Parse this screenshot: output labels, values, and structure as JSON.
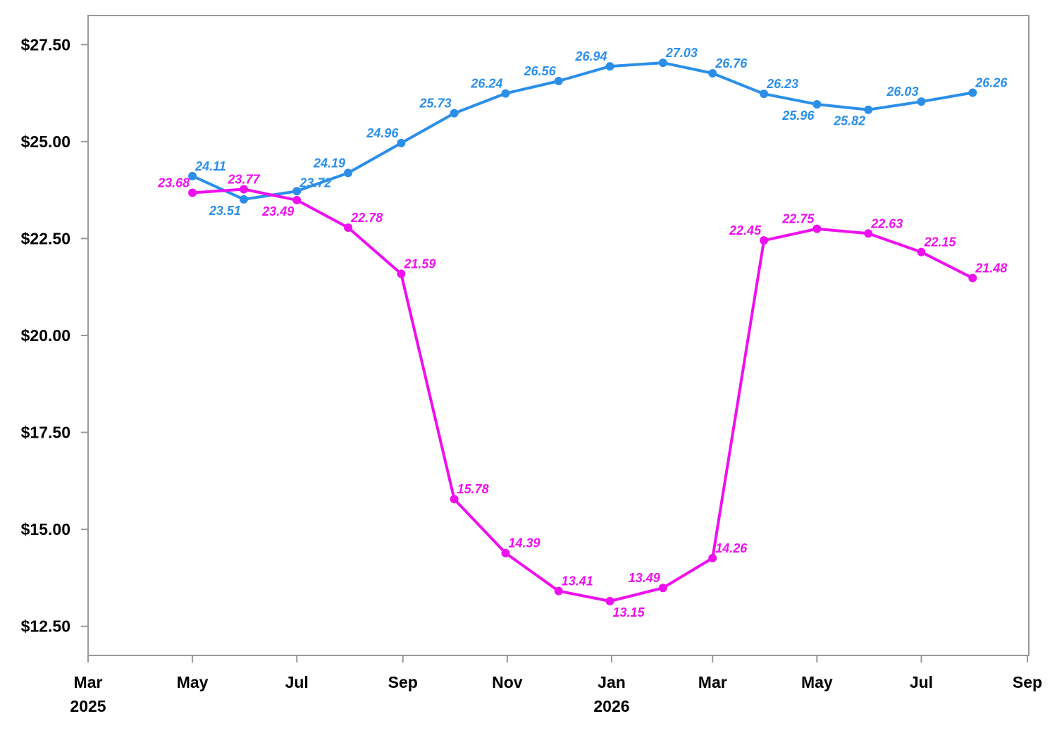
{
  "chart_data": {
    "type": "line",
    "x_axis": {
      "type": "date",
      "range": [
        "2025-03-01",
        "2026-09-01"
      ],
      "ticks": [
        {
          "date": "2025-03-01",
          "label": "Mar"
        },
        {
          "date": "2025-05-01",
          "label": "May"
        },
        {
          "date": "2025-07-01",
          "label": "Jul"
        },
        {
          "date": "2025-09-01",
          "label": "Sep"
        },
        {
          "date": "2025-11-01",
          "label": "Nov"
        },
        {
          "date": "2026-01-01",
          "label": "Jan"
        },
        {
          "date": "2026-03-01",
          "label": "Mar"
        },
        {
          "date": "2026-05-01",
          "label": "May"
        },
        {
          "date": "2026-07-01",
          "label": "Jul"
        },
        {
          "date": "2026-09-01",
          "label": "Sep"
        }
      ],
      "year_labels": [
        {
          "date": "2025-03-01",
          "label": "2025"
        },
        {
          "date": "2026-01-01",
          "label": "2026"
        }
      ]
    },
    "y_axis": {
      "range": [
        11.75,
        28.25
      ],
      "ticks": [
        12.5,
        15,
        17.5,
        20,
        22.5,
        25,
        27.5
      ],
      "tick_labels": [
        "$12.50",
        "$15.00",
        "$17.50",
        "$20.00",
        "$22.50",
        "$25.00",
        "$27.50"
      ]
    },
    "grid": false,
    "legend": "none",
    "series": [
      {
        "color": "#2b8fe8",
        "points": [
          {
            "x": "2025-05-01",
            "y": 24.11,
            "label": "24.11",
            "pos": "above-right"
          },
          {
            "x": "2025-05-31",
            "y": 23.51,
            "label": "23.51",
            "pos": "below-left"
          },
          {
            "x": "2025-07-01",
            "y": 23.72,
            "label": "23.72",
            "pos": "right"
          },
          {
            "x": "2025-07-31",
            "y": 24.19,
            "label": "24.19",
            "pos": "above-left"
          },
          {
            "x": "2025-08-31",
            "y": 24.96,
            "label": "24.96",
            "pos": "above-left"
          },
          {
            "x": "2025-10-01",
            "y": 25.73,
            "label": "25.73",
            "pos": "above-left"
          },
          {
            "x": "2025-10-31",
            "y": 26.24,
            "label": "26.24",
            "pos": "above-left"
          },
          {
            "x": "2025-12-01",
            "y": 26.56,
            "label": "26.56",
            "pos": "above-left"
          },
          {
            "x": "2025-12-31",
            "y": 26.94,
            "label": "26.94",
            "pos": "above-left"
          },
          {
            "x": "2026-01-31",
            "y": 27.03,
            "label": "27.03",
            "pos": "above-right"
          },
          {
            "x": "2026-03-01",
            "y": 26.76,
            "label": "26.76",
            "pos": "above-right"
          },
          {
            "x": "2026-03-31",
            "y": 26.23,
            "label": "26.23",
            "pos": "above-right"
          },
          {
            "x": "2026-05-01",
            "y": 25.96,
            "label": "25.96",
            "pos": "below-left"
          },
          {
            "x": "2026-05-31",
            "y": 25.82,
            "label": "25.82",
            "pos": "below-left"
          },
          {
            "x": "2026-07-01",
            "y": 26.03,
            "label": "26.03",
            "pos": "above-left"
          },
          {
            "x": "2026-07-31",
            "y": 26.26,
            "label": "26.26",
            "pos": "above-right"
          }
        ]
      },
      {
        "color": "#ee10ee",
        "points": [
          {
            "x": "2025-05-01",
            "y": 23.68,
            "label": "23.68",
            "pos": "above-left"
          },
          {
            "x": "2025-05-31",
            "y": 23.77,
            "label": "23.77",
            "pos": "above-center"
          },
          {
            "x": "2025-07-01",
            "y": 23.49,
            "label": "23.49",
            "pos": "below-left"
          },
          {
            "x": "2025-07-31",
            "y": 22.78,
            "label": "22.78",
            "pos": "above-right"
          },
          {
            "x": "2025-08-31",
            "y": 21.59,
            "label": "21.59",
            "pos": "above-right"
          },
          {
            "x": "2025-10-01",
            "y": 15.78,
            "label": "15.78",
            "pos": "above-right"
          },
          {
            "x": "2025-10-31",
            "y": 14.39,
            "label": "14.39",
            "pos": "above-right"
          },
          {
            "x": "2025-12-01",
            "y": 13.41,
            "label": "13.41",
            "pos": "above-right"
          },
          {
            "x": "2025-12-31",
            "y": 13.15,
            "label": "13.15",
            "pos": "below-right"
          },
          {
            "x": "2026-01-31",
            "y": 13.49,
            "label": "13.49",
            "pos": "above-left"
          },
          {
            "x": "2026-03-01",
            "y": 14.26,
            "label": "14.26",
            "pos": "above-right"
          },
          {
            "x": "2026-03-31",
            "y": 22.45,
            "label": "22.45",
            "pos": "above-left"
          },
          {
            "x": "2026-05-01",
            "y": 22.75,
            "label": "22.75",
            "pos": "above-left"
          },
          {
            "x": "2026-05-31",
            "y": 22.63,
            "label": "22.63",
            "pos": "above-right"
          },
          {
            "x": "2026-07-01",
            "y": 22.15,
            "label": "22.15",
            "pos": "above-right"
          },
          {
            "x": "2026-07-31",
            "y": 21.48,
            "label": "21.48",
            "pos": "above-right"
          }
        ]
      }
    ]
  }
}
